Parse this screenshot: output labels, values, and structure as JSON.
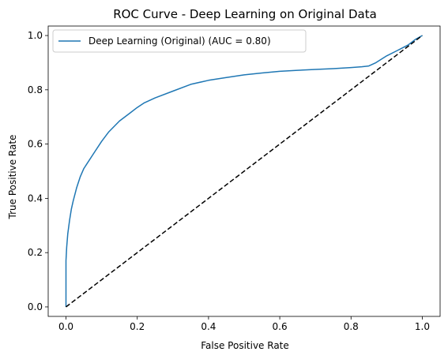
{
  "chart_data": {
    "type": "line",
    "title": "ROC Curve - Deep Learning on Original Data",
    "xlabel": "False Positive Rate",
    "ylabel": "True Positive Rate",
    "xlim": [
      -0.05,
      1.05
    ],
    "ylim": [
      -0.035,
      1.035
    ],
    "xticks": [
      0.0,
      0.2,
      0.4,
      0.6,
      0.8,
      1.0
    ],
    "xtick_labels": [
      "0.0",
      "0.2",
      "0.4",
      "0.6",
      "0.8",
      "1.0"
    ],
    "yticks": [
      0.0,
      0.2,
      0.4,
      0.6,
      0.8,
      1.0
    ],
    "ytick_labels": [
      "0.0",
      "0.2",
      "0.4",
      "0.6",
      "0.8",
      "1.0"
    ],
    "grid": false,
    "legend_position": "top-left",
    "series": [
      {
        "name": "Deep Learning (Original) (AUC = 0.80)",
        "color": "#1f77b4",
        "style": "solid",
        "x": [
          0.0,
          0.0,
          0.002,
          0.005,
          0.01,
          0.015,
          0.02,
          0.03,
          0.04,
          0.05,
          0.06,
          0.08,
          0.1,
          0.12,
          0.15,
          0.18,
          0.2,
          0.22,
          0.25,
          0.3,
          0.35,
          0.4,
          0.45,
          0.5,
          0.55,
          0.6,
          0.65,
          0.7,
          0.75,
          0.8,
          0.83,
          0.85,
          0.87,
          0.9,
          0.93,
          0.96,
          0.98,
          1.0
        ],
        "y": [
          0.0,
          0.17,
          0.22,
          0.27,
          0.32,
          0.36,
          0.39,
          0.44,
          0.48,
          0.51,
          0.53,
          0.57,
          0.61,
          0.645,
          0.685,
          0.715,
          0.735,
          0.752,
          0.77,
          0.795,
          0.82,
          0.835,
          0.845,
          0.855,
          0.862,
          0.868,
          0.872,
          0.875,
          0.878,
          0.882,
          0.885,
          0.888,
          0.9,
          0.925,
          0.945,
          0.965,
          0.985,
          1.0
        ]
      },
      {
        "name": "",
        "color": "#000000",
        "style": "dashed",
        "x": [
          0.0,
          1.0
        ],
        "y": [
          0.0,
          1.0
        ]
      }
    ]
  }
}
